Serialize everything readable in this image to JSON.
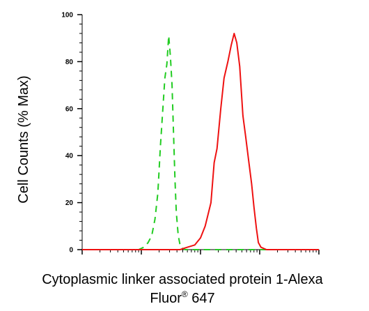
{
  "chart_data": {
    "type": "line",
    "xlabel_line1": "Cytoplasmic linker associated protein 1-Alexa",
    "xlabel_line2_prefix": "Fluor",
    "xlabel_line2_sup": "®",
    "xlabel_line2_suffix": " 647",
    "ylabel": "Cell Counts (% Max)",
    "x_scale": "log",
    "xlim": [
      1,
      10000
    ],
    "ylim": [
      0,
      100
    ],
    "yticks": [
      0,
      20,
      40,
      60,
      80,
      100
    ],
    "ytick_labels": [
      "0",
      "20",
      "40",
      "60",
      "80",
      "100"
    ],
    "grid": false,
    "series": [
      {
        "color": "#22cc22",
        "dash": "dashed",
        "points": [
          [
            1.0,
            0
          ],
          [
            5.0,
            0
          ],
          [
            9.0,
            0
          ],
          [
            11.0,
            1
          ],
          [
            13.0,
            3
          ],
          [
            15.0,
            6
          ],
          [
            17.0,
            13
          ],
          [
            19.0,
            24
          ],
          [
            21.0,
            44
          ],
          [
            23.0,
            59
          ],
          [
            25.0,
            73
          ],
          [
            27.0,
            79
          ],
          [
            29.0,
            91
          ],
          [
            31.0,
            82
          ],
          [
            33.0,
            70
          ],
          [
            35.0,
            50
          ],
          [
            37.0,
            30
          ],
          [
            39.0,
            16
          ],
          [
            42.0,
            6
          ],
          [
            46.0,
            1
          ],
          [
            55.0,
            0
          ],
          [
            200.0,
            0
          ],
          [
            10000.0,
            0
          ]
        ]
      },
      {
        "color": "#ee1111",
        "dash": "solid",
        "points": [
          [
            1.0,
            0
          ],
          [
            10.0,
            0
          ],
          [
            20.0,
            0
          ],
          [
            45.0,
            0
          ],
          [
            60.0,
            1
          ],
          [
            80.0,
            2
          ],
          [
            100.0,
            5
          ],
          [
            120.0,
            10
          ],
          [
            150.0,
            20
          ],
          [
            170.0,
            37
          ],
          [
            190.0,
            43
          ],
          [
            220.0,
            60
          ],
          [
            250.0,
            73
          ],
          [
            290.0,
            80
          ],
          [
            330.0,
            87
          ],
          [
            370.0,
            92
          ],
          [
            410.0,
            88
          ],
          [
            460.0,
            78
          ],
          [
            520.0,
            57
          ],
          [
            580.0,
            48
          ],
          [
            650.0,
            38
          ],
          [
            730.0,
            28
          ],
          [
            800.0,
            18
          ],
          [
            880.0,
            9
          ],
          [
            950.0,
            3
          ],
          [
            1050.0,
            1
          ],
          [
            1300.0,
            0
          ],
          [
            10000.0,
            0
          ]
        ]
      }
    ]
  }
}
